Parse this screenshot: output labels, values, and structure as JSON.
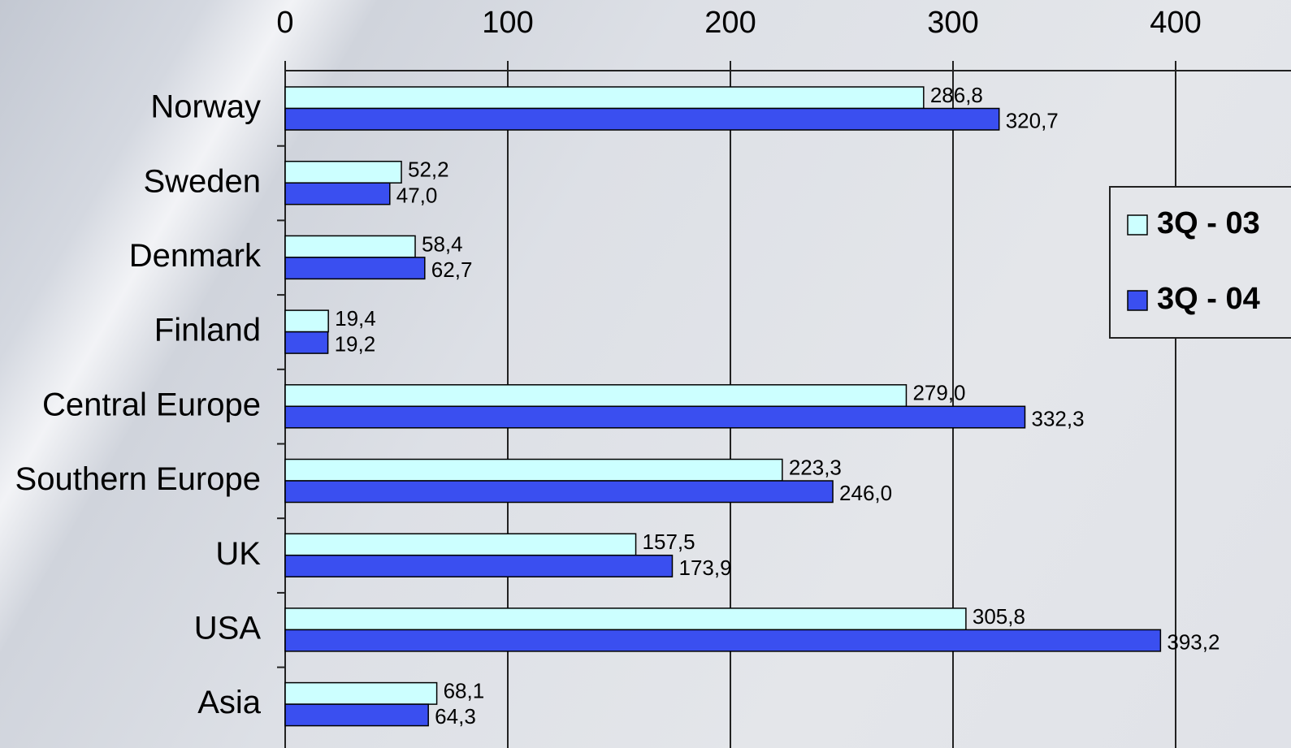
{
  "chart_data": {
    "type": "bar",
    "orientation": "horizontal",
    "categories": [
      "Norway",
      "Sweden",
      "Denmark",
      "Finland",
      "Central Europe",
      "Southern Europe",
      "UK",
      "USA",
      "Asia"
    ],
    "series": [
      {
        "name": "3Q - 03",
        "color": "#ccffff",
        "values": [
          286.8,
          52.2,
          58.4,
          19.4,
          279.0,
          223.3,
          157.5,
          305.8,
          68.1
        ],
        "value_labels": [
          "286,8",
          "52,2",
          "58,4",
          "19,4",
          "279,0",
          "223,3",
          "157,5",
          "305,8",
          "68,1"
        ]
      },
      {
        "name": "3Q - 04",
        "color": "#3a4ff0",
        "values": [
          320.7,
          47.0,
          62.7,
          19.2,
          332.3,
          246.0,
          173.9,
          393.2,
          64.3
        ],
        "value_labels": [
          "320,7",
          "47,0",
          "62,7",
          "19,2",
          "332,3",
          "246,0",
          "173,9",
          "393,2",
          "64,3"
        ]
      }
    ],
    "xlim": [
      0,
      400
    ],
    "xticks": [
      0,
      100,
      200,
      300,
      400
    ],
    "grid": true,
    "legend": "right"
  }
}
